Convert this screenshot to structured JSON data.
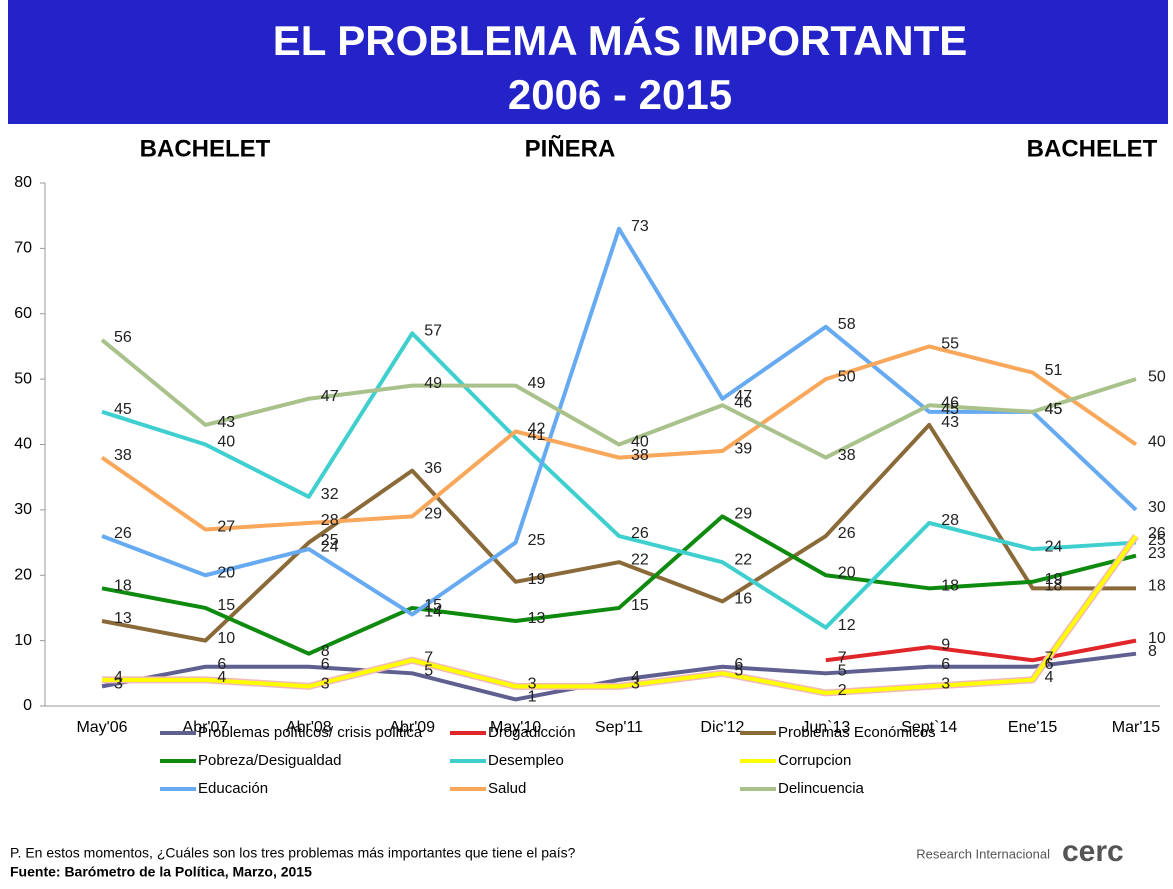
{
  "chart_data": {
    "type": "line",
    "title": "EL PROBLEMA MÁS IMPORTANTE",
    "subtitle": "2006 - 2015",
    "annotations": [
      "BACHELET",
      "PIÑERA",
      "BACHELET"
    ],
    "categories": [
      "May'06",
      "Abr'07",
      "Abr'08",
      "Abr'09",
      "May'10",
      "Sep'11",
      "Dic'12",
      "Jun`13",
      "Sept`14",
      "Ene'15",
      "Mar'15"
    ],
    "ylim": [
      0,
      80
    ],
    "yticks": [
      0,
      10,
      20,
      30,
      40,
      50,
      60,
      70,
      80
    ],
    "grid": false,
    "series": [
      {
        "name": "Problemas políticos/ crisis politica",
        "color": "#5f5f90",
        "values": [
          3,
          6,
          6,
          5,
          1,
          4,
          6,
          5,
          6,
          6,
          8
        ]
      },
      {
        "name": "Drogadicción",
        "color": "#e0262b",
        "values": [
          null,
          null,
          null,
          null,
          null,
          null,
          null,
          7,
          9,
          7,
          10
        ]
      },
      {
        "name": "Problemas Económicos",
        "color": "#8b6a3a",
        "values": [
          13,
          10,
          25,
          36,
          19,
          22,
          16,
          26,
          43,
          18,
          18
        ]
      },
      {
        "name": "Pobreza/Desigualdad",
        "color": "#0e8a0e",
        "values": [
          18,
          15,
          8,
          15,
          13,
          15,
          29,
          20,
          18,
          19,
          23
        ]
      },
      {
        "name": "Desempleo",
        "color": "#3fcfcf",
        "values": [
          45,
          40,
          32,
          57,
          41,
          26,
          22,
          12,
          28,
          24,
          25
        ]
      },
      {
        "name": "Corrupcion",
        "color": "#ffff00",
        "values": [
          4,
          4,
          3,
          7,
          3,
          3,
          5,
          2,
          3,
          4,
          26
        ]
      },
      {
        "name": "Educación",
        "color": "#66aaf2",
        "values": [
          26,
          20,
          24,
          14,
          25,
          73,
          47,
          58,
          45,
          45,
          30
        ]
      },
      {
        "name": "Salud",
        "color": "#f9a75b",
        "values": [
          38,
          27,
          28,
          29,
          42,
          38,
          39,
          50,
          55,
          51,
          40
        ]
      },
      {
        "name": "Delincuencia",
        "color": "#a9c18a",
        "values": [
          56,
          43,
          47,
          49,
          49,
          40,
          46,
          38,
          46,
          45,
          50
        ]
      }
    ]
  },
  "footer": {
    "question": "P. En estos momentos, ¿Cuáles son los tres problemas más importantes que tiene el país?",
    "source": "Fuente:  Barómetro de la Política,  Marzo, 2015",
    "logo_text": "Research Internacional",
    "logo": "cerc"
  }
}
